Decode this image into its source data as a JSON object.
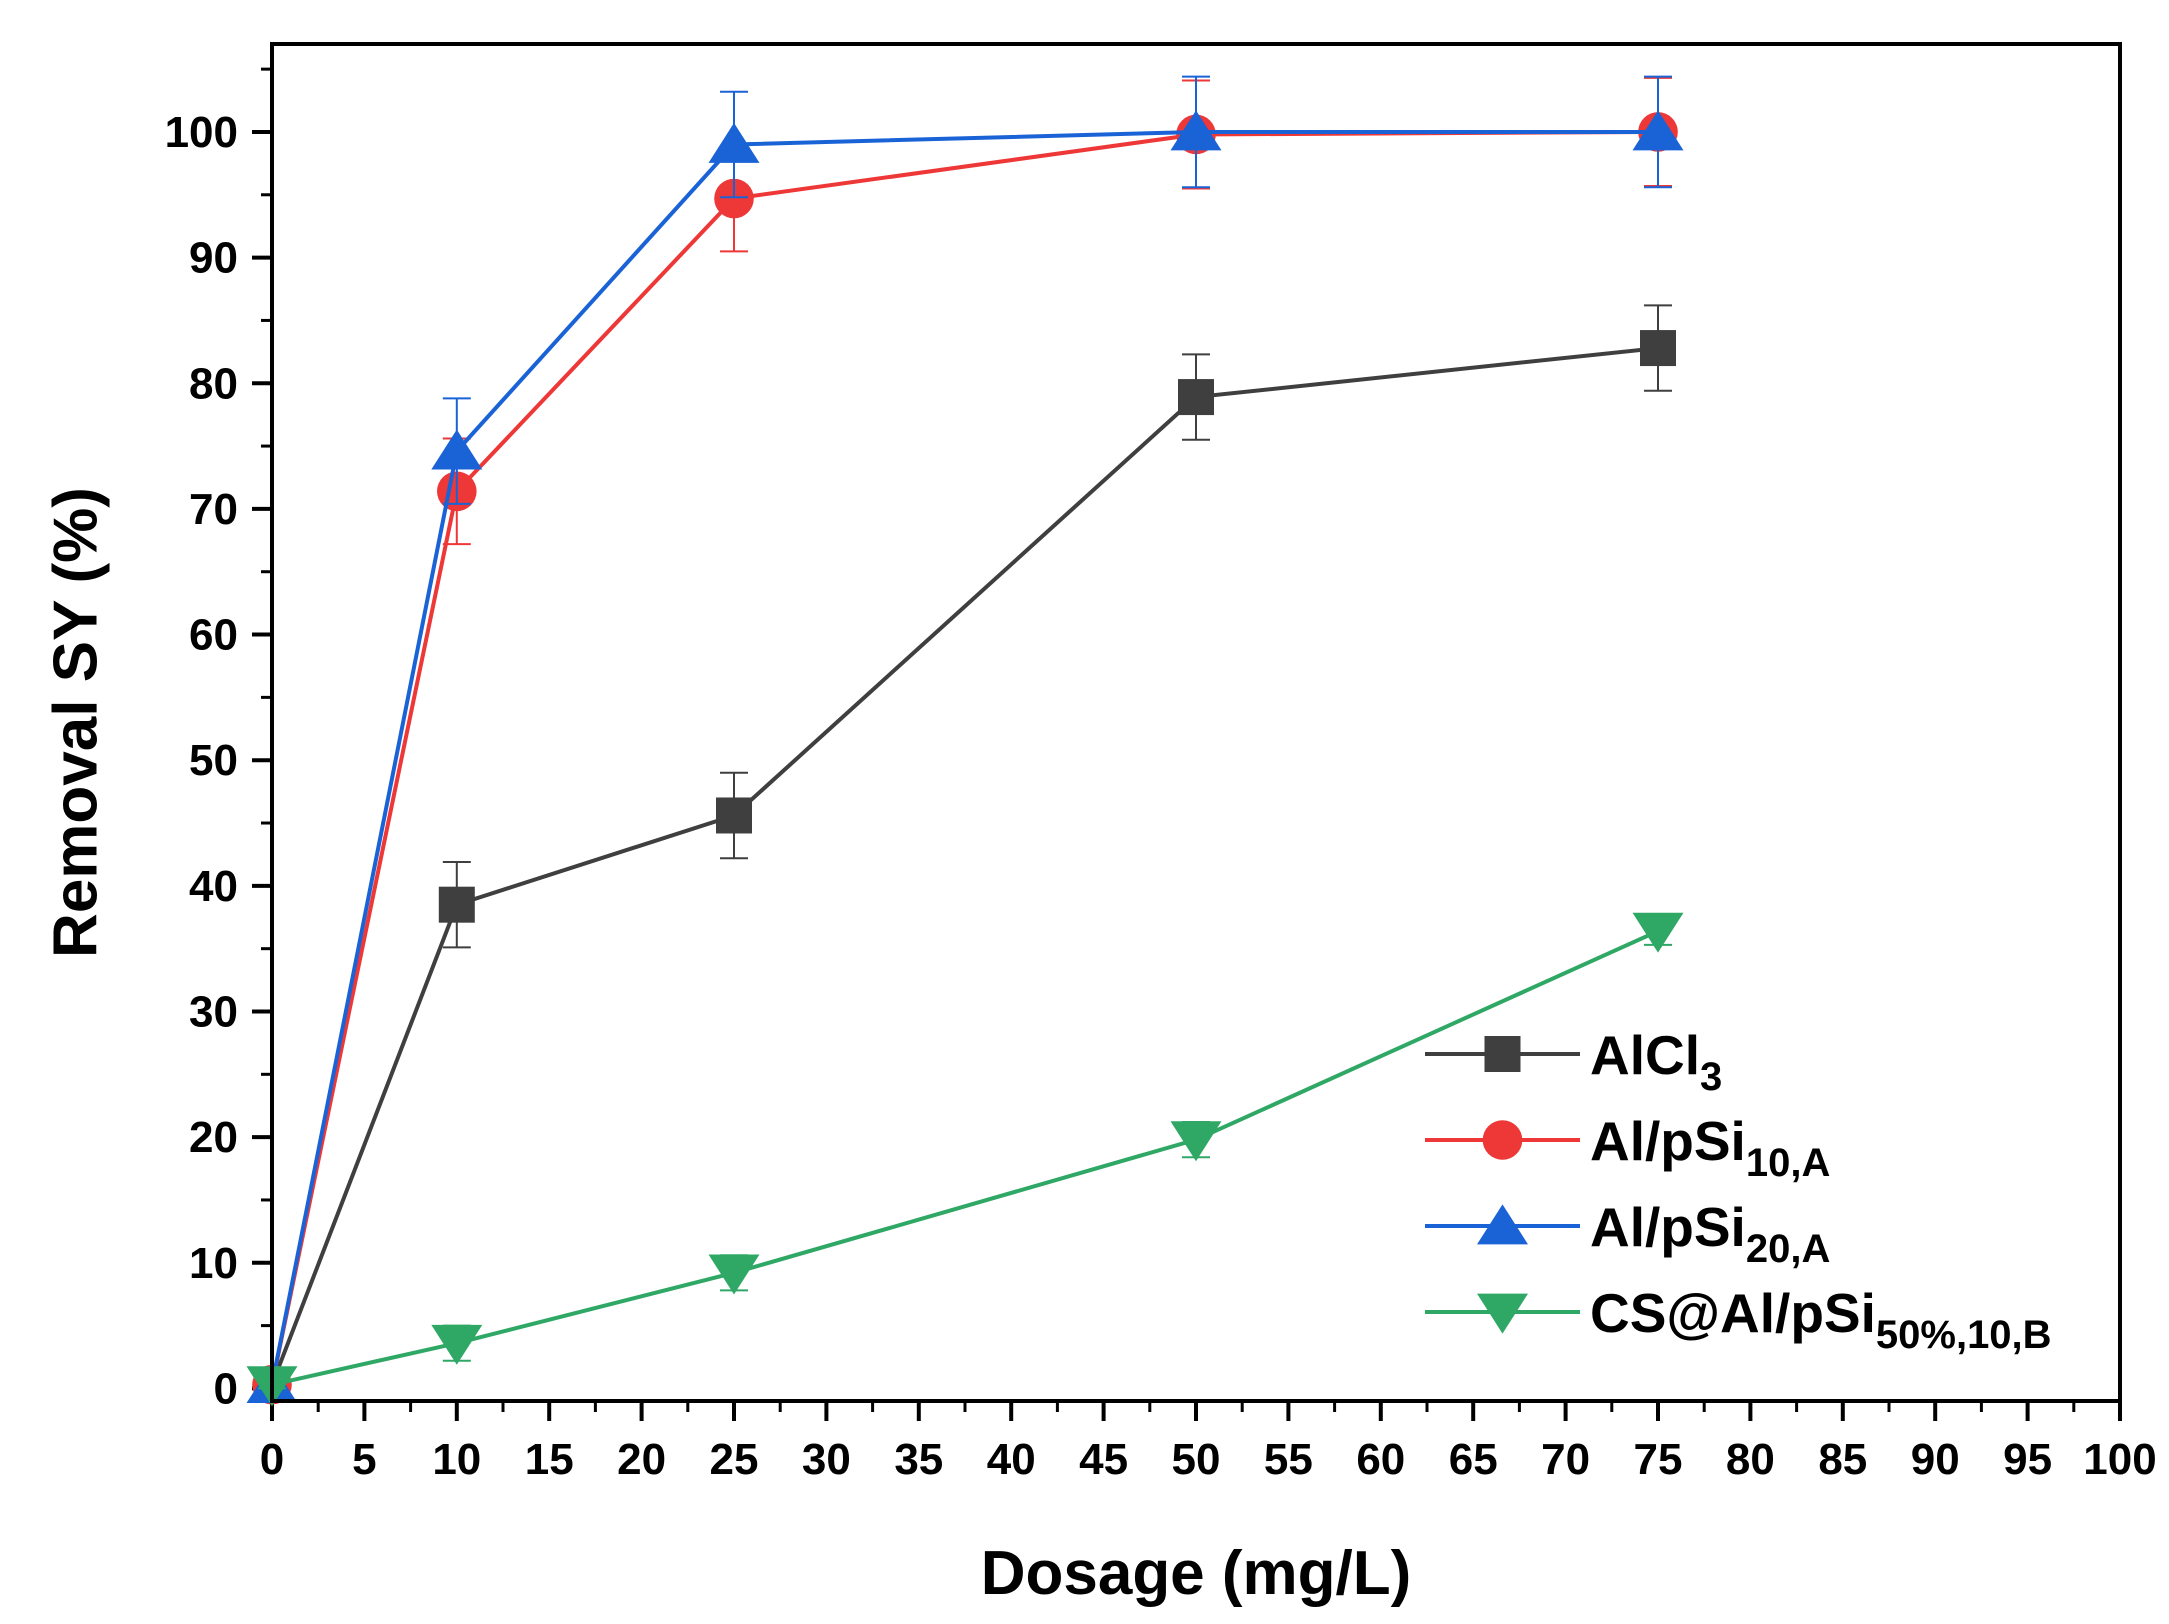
{
  "chart_data": {
    "type": "line",
    "title": "",
    "xlabel": "Dosage (mg/L)",
    "ylabel": "Removal SY (%)",
    "xlim": [
      0,
      100
    ],
    "ylim": [
      -1,
      107
    ],
    "x_ticks": [
      0,
      5,
      10,
      15,
      20,
      25,
      30,
      35,
      40,
      45,
      50,
      55,
      60,
      65,
      70,
      75,
      80,
      85,
      90,
      95,
      100
    ],
    "y_ticks": [
      0,
      10,
      20,
      30,
      40,
      50,
      60,
      70,
      80,
      90,
      100
    ],
    "x_tick_labels": [
      "0",
      "5",
      "10",
      "15",
      "20",
      "25",
      "30",
      "35",
      "40",
      "45",
      "50",
      "55",
      "60",
      "65",
      "70",
      "75",
      "80",
      "85",
      "90",
      "95",
      "100"
    ],
    "y_tick_labels": [
      "0",
      "10",
      "20",
      "30",
      "40",
      "50",
      "60",
      "70",
      "80",
      "90",
      "100"
    ],
    "grid": false,
    "legend_position": "bottom-right",
    "x": [
      0,
      10,
      25,
      50,
      75
    ],
    "series": [
      {
        "name": "AlCl3",
        "label_main": "AlCl",
        "label_sub": "3",
        "color": "#3f3f3f",
        "marker": "square",
        "values": [
          0.3,
          38.5,
          45.6,
          78.9,
          82.8
        ],
        "errors": [
          0.6,
          3.4,
          3.4,
          3.4,
          3.4
        ]
      },
      {
        "name": "Al/pSi10,A",
        "label_main": "Al/pSi",
        "label_sub": "10,A",
        "color": "#ee3737",
        "marker": "circle",
        "values": [
          0.3,
          71.4,
          94.7,
          99.8,
          100
        ],
        "errors": [
          0.6,
          4.2,
          4.2,
          4.3,
          4.3
        ]
      },
      {
        "name": "Al/pSi20,A",
        "label_main": "Al/pSi",
        "label_sub": "20,A",
        "color": "#1a63d6",
        "marker": "triangle-up",
        "values": [
          0.3,
          74.6,
          99.0,
          100,
          100
        ],
        "errors": [
          0.6,
          4.2,
          4.2,
          4.4,
          4.4
        ]
      },
      {
        "name": "CS@Al/pSi50%,10,B",
        "label_main": "CS@Al/pSi",
        "label_sub": "50%,10,B",
        "color": "#2fa866",
        "marker": "triangle-down",
        "values": [
          0.3,
          3.6,
          9.2,
          19.8,
          36.4
        ],
        "errors": [
          0.3,
          1.4,
          1.4,
          1.4,
          1.1
        ]
      }
    ]
  }
}
